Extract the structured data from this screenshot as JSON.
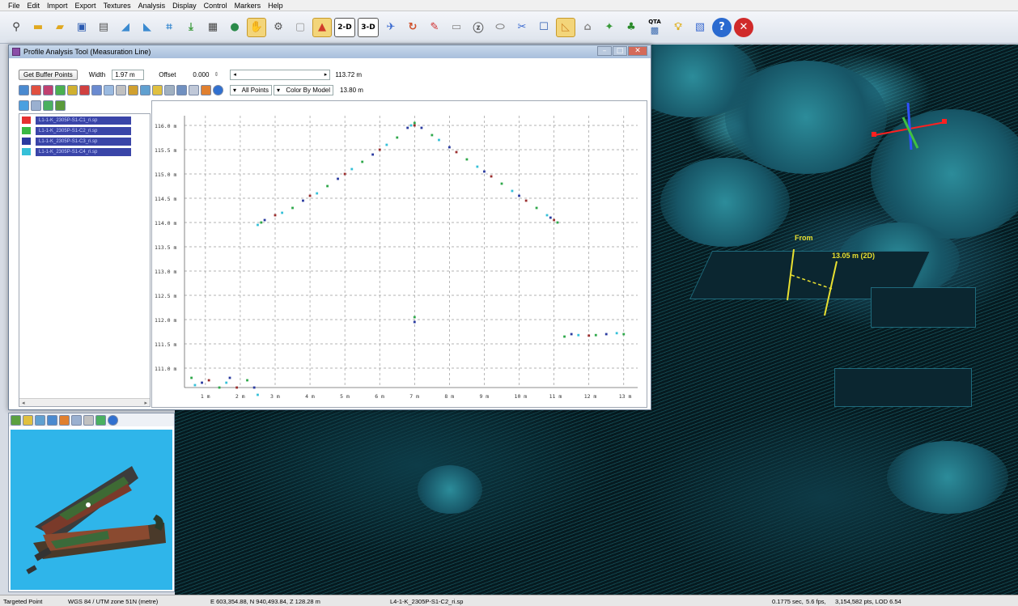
{
  "menu": [
    "File",
    "Edit",
    "Import",
    "Export",
    "Textures",
    "Analysis",
    "Display",
    "Control",
    "Markers",
    "Help"
  ],
  "toolbar": {
    "icons": [
      "binoculars-icon",
      "open-folder-icon",
      "add-folder-icon",
      "save-icon",
      "layers-icon",
      "terrain-icon",
      "terrain-edit-icon",
      "crop-icon",
      "export-icon",
      "rgb-icon",
      "globe-icon",
      "pan-icon",
      "gear-icon",
      "tool-icon",
      "color-by-icon"
    ],
    "btn_2d": "2-D",
    "btn_3d": "3-D",
    "icons2": [
      "fly-icon",
      "rotate-icon",
      "pin-icon",
      "select-icon",
      "zoom-icon",
      "ellipse-icon",
      "cut-icon",
      "rectangle-icon",
      "profile-icon",
      "measure-icon",
      "person-icon",
      "tree-icon",
      "cube-icon"
    ],
    "qta_label": "QTA",
    "icons3": [
      "bulb-icon",
      "picture-icon",
      "help-icon",
      "close-icon"
    ]
  },
  "profile_window": {
    "title": "Profile Analysis Tool (Measuration Line)",
    "get_buffer_label": "Get Buffer Points",
    "width_label": "Width",
    "width_value": "1.97 m",
    "offset_label": "Offset",
    "offset_value": "0.000",
    "slider_right_value": "113.72 m",
    "all_points_label": "All Points",
    "color_by_label": "Color By Model",
    "second_value": "13.80 m",
    "layers": [
      {
        "color": "#e53030",
        "label": "L1-1-K_2305P-S1-C1_ri.sp"
      },
      {
        "color": "#3ab844",
        "label": "L1-1-K_2305P-S1-C2_ri.sp"
      },
      {
        "color": "#2a3aa0",
        "label": "L1-1-K_2305P-S1-C3_ri.sp"
      },
      {
        "color": "#35c0d8",
        "label": "L1-1-K_2305P-S1-C4_ri.sp"
      }
    ]
  },
  "chart_data": {
    "type": "scatter",
    "title": "",
    "xlabel": "",
    "ylabel": "",
    "x_ticks": [
      "1 m",
      "2 m",
      "3 m",
      "4 m",
      "5 m",
      "6 m",
      "7 m",
      "8 m",
      "9 m",
      "10 m",
      "11 m",
      "12 m",
      "13 m"
    ],
    "y_ticks": [
      "116.0 m",
      "115.5 m",
      "115.0 m",
      "114.5 m",
      "114.0 m",
      "113.5 m",
      "113.0 m",
      "112.5 m",
      "112.0 m",
      "111.5 m",
      "111.0 m"
    ],
    "xlim": [
      0.4,
      13.4
    ],
    "ylim": [
      110.6,
      116.2
    ],
    "grid": true,
    "series": [
      {
        "color": "#2ea84a",
        "points": [
          [
            2.6,
            114.0
          ],
          [
            3.5,
            114.3
          ],
          [
            4.5,
            114.75
          ],
          [
            5.5,
            115.25
          ],
          [
            6.5,
            115.75
          ],
          [
            7.0,
            116.05
          ],
          [
            7.5,
            115.8
          ],
          [
            8.5,
            115.3
          ],
          [
            9.5,
            114.8
          ],
          [
            10.5,
            114.3
          ],
          [
            11.1,
            114.0
          ],
          [
            7.0,
            112.05
          ],
          [
            11.3,
            111.65
          ],
          [
            12.2,
            111.68
          ],
          [
            13.0,
            111.7
          ],
          [
            0.6,
            110.8
          ],
          [
            1.4,
            110.6
          ],
          [
            2.2,
            110.75
          ]
        ]
      },
      {
        "color": "#2a3aa0",
        "points": [
          [
            2.7,
            114.05
          ],
          [
            3.8,
            114.45
          ],
          [
            4.8,
            114.9
          ],
          [
            5.8,
            115.4
          ],
          [
            6.8,
            115.95
          ],
          [
            7.2,
            115.95
          ],
          [
            8.0,
            115.55
          ],
          [
            9.0,
            115.05
          ],
          [
            10.0,
            114.55
          ],
          [
            10.9,
            114.1
          ],
          [
            7.0,
            111.95
          ],
          [
            11.5,
            111.7
          ],
          [
            12.5,
            111.7
          ],
          [
            0.9,
            110.7
          ],
          [
            1.7,
            110.8
          ],
          [
            2.4,
            110.6
          ]
        ]
      },
      {
        "color": "#35c0d8",
        "points": [
          [
            2.5,
            113.95
          ],
          [
            3.2,
            114.2
          ],
          [
            4.2,
            114.6
          ],
          [
            5.2,
            115.1
          ],
          [
            6.2,
            115.6
          ],
          [
            6.9,
            116.0
          ],
          [
            7.7,
            115.7
          ],
          [
            8.8,
            115.15
          ],
          [
            9.8,
            114.65
          ],
          [
            10.8,
            114.15
          ],
          [
            11.7,
            111.68
          ],
          [
            12.8,
            111.72
          ],
          [
            0.7,
            110.65
          ],
          [
            1.6,
            110.7
          ],
          [
            2.5,
            110.45
          ]
        ]
      },
      {
        "color": "#9a2d2d",
        "points": [
          [
            3.0,
            114.15
          ],
          [
            4.0,
            114.55
          ],
          [
            5.0,
            115.0
          ],
          [
            6.0,
            115.5
          ],
          [
            7.0,
            116.0
          ],
          [
            8.2,
            115.45
          ],
          [
            9.2,
            114.95
          ],
          [
            10.2,
            114.45
          ],
          [
            11.0,
            114.05
          ],
          [
            12.0,
            111.67
          ],
          [
            1.1,
            110.75
          ],
          [
            1.9,
            110.6
          ]
        ]
      }
    ]
  },
  "status": {
    "mode": "Targeted Point",
    "projection": "WGS 84 / UTM zone 51N (metre)",
    "coords": "E 603,354.88, N 940,493.84, Z 128.28 m",
    "file": "L4-1-K_2305P-S1-C2_ri.sp",
    "timing": "0.1775 sec,",
    "fps": "5.6 fps,",
    "pts": "3,154,582 pts, LOD 6.54"
  },
  "view3d": {
    "label_from": "From",
    "measure_label": "13.05 m (2D)"
  }
}
